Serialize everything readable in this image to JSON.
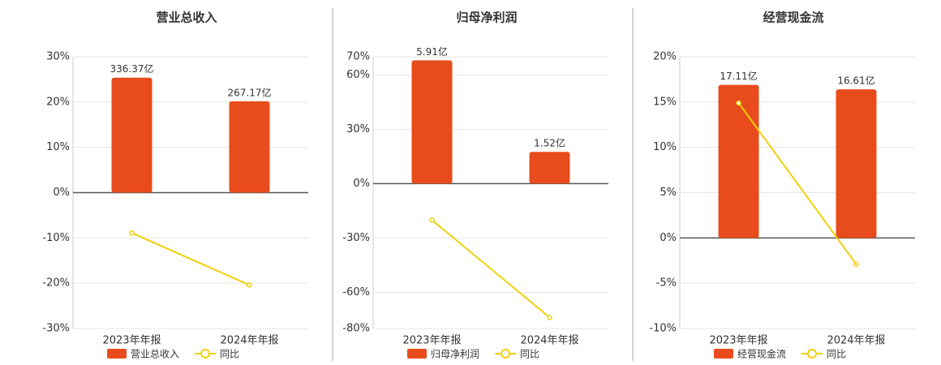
{
  "chart_data": [
    {
      "type": "bar",
      "title": "营业总收入",
      "categories": [
        "2023年年报",
        "2024年年报"
      ],
      "ylim": [
        -30,
        30
      ],
      "yticks": [
        {
          "value": 30,
          "label": "30%"
        },
        {
          "value": 20,
          "label": "20%"
        },
        {
          "value": 10,
          "label": "10%"
        },
        {
          "value": 0,
          "label": "0%"
        },
        {
          "value": -10,
          "label": "-10%"
        },
        {
          "value": -20,
          "label": "-20%"
        },
        {
          "value": -30,
          "label": "-30%"
        }
      ],
      "y2lim": [
        -397.3,
        397.3
      ],
      "grid": true,
      "series": [
        {
          "name": "营业总收入",
          "type": "bar",
          "axis": "y2",
          "color": "#e84c1c",
          "values": [
            336.37,
            267.17
          ],
          "value_labels": [
            "336.37亿",
            "267.17亿"
          ]
        },
        {
          "name": "同比",
          "type": "line",
          "color": "#f2cf0a",
          "values": [
            -8.9,
            -20.4
          ]
        }
      ]
    },
    {
      "type": "bar",
      "title": "归母净利润",
      "categories": [
        "2023年年报",
        "2024年年报"
      ],
      "ylim": [
        -80,
        70
      ],
      "yticks": [
        {
          "value": 70,
          "label": "70%"
        },
        {
          "value": 60,
          "label": "60%"
        },
        {
          "value": 30,
          "label": "30%"
        },
        {
          "value": 0,
          "label": "0%"
        },
        {
          "value": -30,
          "label": "-30%"
        },
        {
          "value": -60,
          "label": "-60%"
        },
        {
          "value": -80,
          "label": "-80%"
        }
      ],
      "y2lim": [
        -6.95,
        6.08
      ],
      "grid": true,
      "series": [
        {
          "name": "归母净利润",
          "type": "bar",
          "axis": "y2",
          "color": "#e84c1c",
          "values": [
            5.91,
            1.52
          ],
          "value_labels": [
            "5.91亿",
            "1.52亿"
          ]
        },
        {
          "name": "同比",
          "type": "line",
          "color": "#f2cf0a",
          "values": [
            -20.1,
            -73.9
          ]
        }
      ]
    },
    {
      "type": "bar",
      "title": "经营现金流",
      "categories": [
        "2023年年报",
        "2024年年报"
      ],
      "ylim": [
        -10,
        20
      ],
      "yticks": [
        {
          "value": 20,
          "label": "20%"
        },
        {
          "value": 15,
          "label": "15%"
        },
        {
          "value": 10,
          "label": "10%"
        },
        {
          "value": 5,
          "label": "5%"
        },
        {
          "value": 0,
          "label": "0%"
        },
        {
          "value": -5,
          "label": "-5%"
        },
        {
          "value": -10,
          "label": "-10%"
        }
      ],
      "y2lim": [
        -10.12,
        20.25
      ],
      "grid": true,
      "series": [
        {
          "name": "经营现金流",
          "type": "bar",
          "axis": "y2",
          "color": "#e84c1c",
          "values": [
            17.11,
            16.61
          ],
          "value_labels": [
            "17.11亿",
            "16.61亿"
          ]
        },
        {
          "name": "同比",
          "type": "line",
          "color": "#f2cf0a",
          "values": [
            14.9,
            -2.9
          ]
        }
      ]
    }
  ]
}
